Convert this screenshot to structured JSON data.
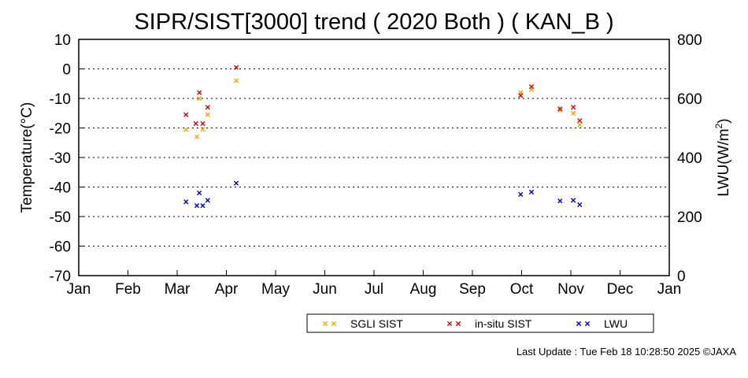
{
  "chart_data": {
    "type": "scatter",
    "title": "SIPR/SIST[3000] trend ( 2020 Both ) ( KAN_B )",
    "ylabel": "Temperature(°C)",
    "y2label_main": "LWU(W/m",
    "y2label_sup": "2",
    "y2label_close": ")",
    "ylim": [
      -70,
      10
    ],
    "y2lim": [
      0,
      800
    ],
    "yticks": [
      10,
      0,
      -10,
      -20,
      -30,
      -40,
      -50,
      -60,
      -70
    ],
    "y2ticks": [
      800,
      600,
      400,
      200,
      0
    ],
    "categories": [
      "Jan",
      "Feb",
      "Mar",
      "Apr",
      "May",
      "Jun",
      "Jul",
      "Aug",
      "Sep",
      "Oct",
      "Nov",
      "Dec",
      "Jan"
    ],
    "grid": "dotted horizontal",
    "legend_position": "bottom",
    "series": [
      {
        "name": "SGLI SIST",
        "axis": "left",
        "color": "#ffa500",
        "points": [
          {
            "x": 2.18,
            "y": -20.5
          },
          {
            "x": 2.4,
            "y": -23.0
          },
          {
            "x": 2.45,
            "y": -10.0
          },
          {
            "x": 2.52,
            "y": -20.5
          },
          {
            "x": 2.62,
            "y": -15.5
          },
          {
            "x": 3.2,
            "y": -4.0
          },
          {
            "x": 8.98,
            "y": -8.0
          },
          {
            "x": 9.2,
            "y": -7.0
          },
          {
            "x": 9.78,
            "y": -14.0
          },
          {
            "x": 10.05,
            "y": -15.0
          },
          {
            "x": 10.18,
            "y": -19.0
          }
        ]
      },
      {
        "name": "in-situ SIST",
        "axis": "left",
        "color": "#dd0000",
        "points": [
          {
            "x": 2.18,
            "y": -15.5
          },
          {
            "x": 2.38,
            "y": -18.5
          },
          {
            "x": 2.45,
            "y": -8.0
          },
          {
            "x": 2.52,
            "y": -18.5
          },
          {
            "x": 2.62,
            "y": -13.0
          },
          {
            "x": 3.2,
            "y": 0.5
          },
          {
            "x": 8.98,
            "y": -9.0
          },
          {
            "x": 9.2,
            "y": -6.0
          },
          {
            "x": 9.78,
            "y": -13.5
          },
          {
            "x": 10.05,
            "y": -13.0
          },
          {
            "x": 10.18,
            "y": -17.5
          }
        ]
      },
      {
        "name": "LWU",
        "axis": "right",
        "color": "#0000dd",
        "points": [
          {
            "x": 2.18,
            "y": 250
          },
          {
            "x": 2.4,
            "y": 237
          },
          {
            "x": 2.45,
            "y": 280
          },
          {
            "x": 2.52,
            "y": 237
          },
          {
            "x": 2.62,
            "y": 255
          },
          {
            "x": 3.2,
            "y": 313
          },
          {
            "x": 8.98,
            "y": 275
          },
          {
            "x": 9.2,
            "y": 283
          },
          {
            "x": 9.78,
            "y": 253
          },
          {
            "x": 10.05,
            "y": 255
          },
          {
            "x": 10.18,
            "y": 240
          }
        ]
      }
    ]
  },
  "footer": {
    "last_update": "Last Update : Tue Feb 18 10:28:50 2025  ©JAXA"
  }
}
